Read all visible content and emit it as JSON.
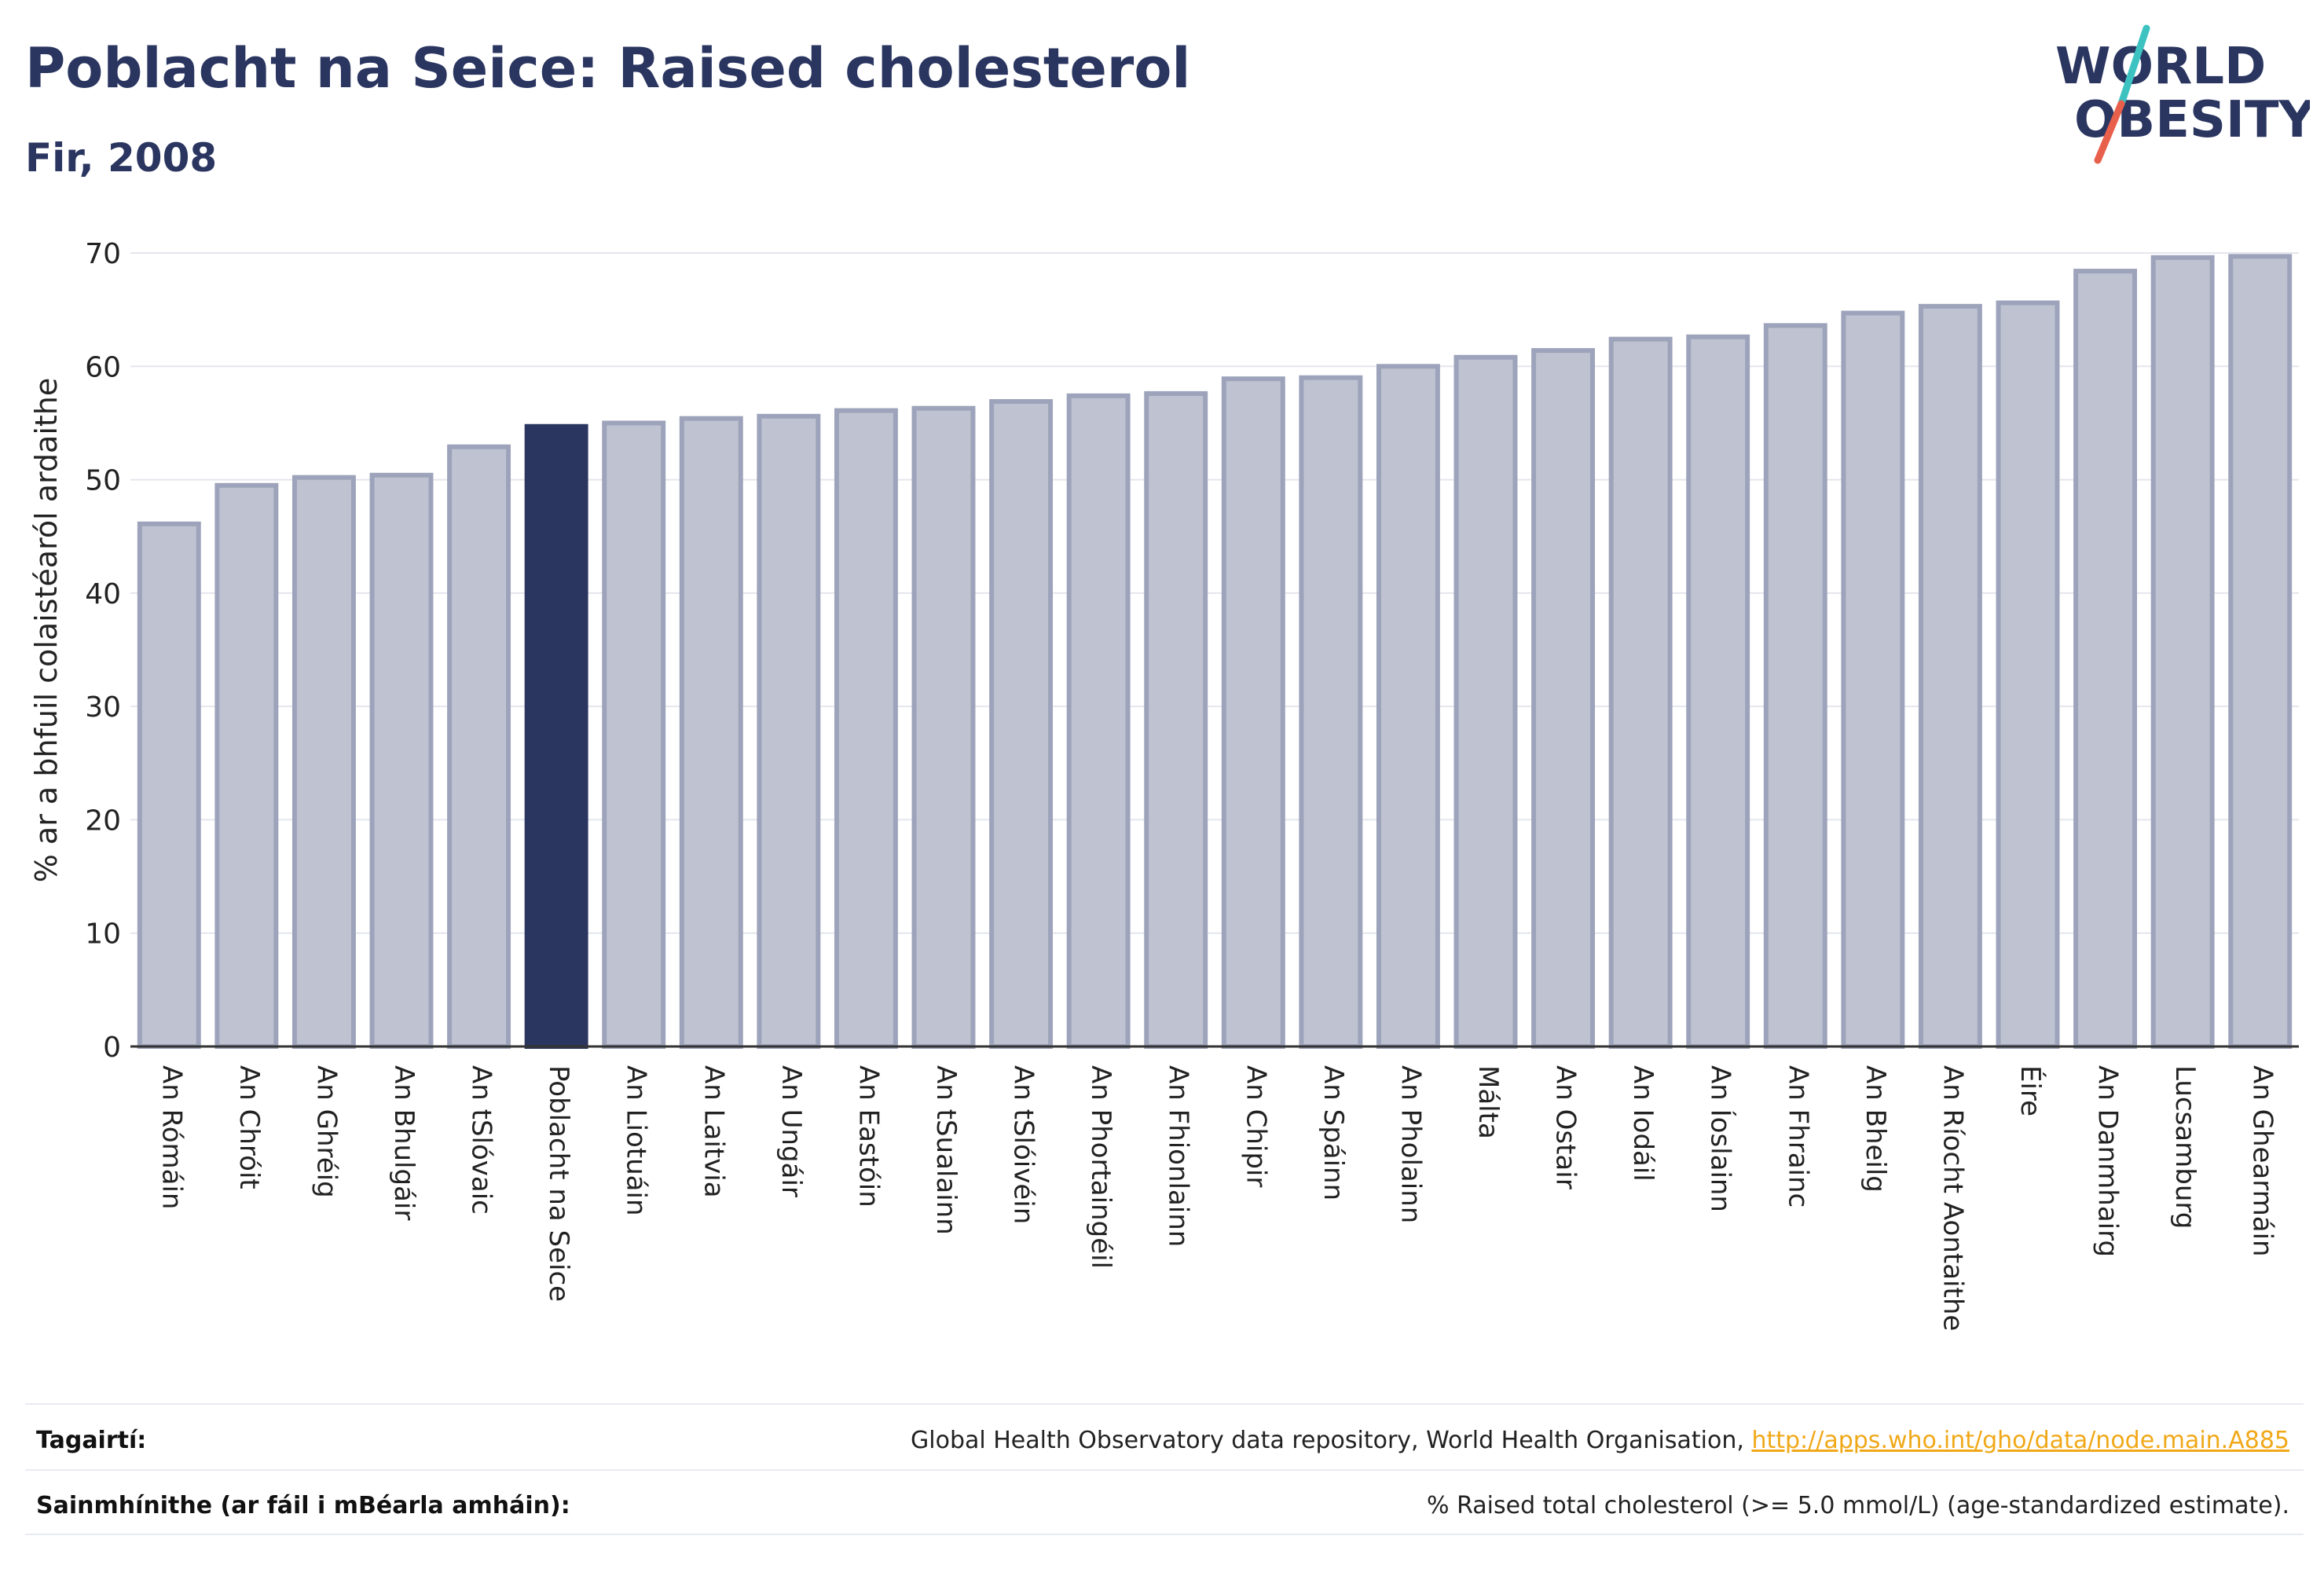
{
  "header": {
    "title": "Poblacht na Seice: Raised cholesterol",
    "subtitle": "Fir, 2008"
  },
  "logo": {
    "line1": "WORLD",
    "line2": "OBESITY",
    "text_color": "#2a3560",
    "slash_colors": [
      "#e8604c",
      "#3cc2c0"
    ]
  },
  "colors": {
    "highlight": "#2a3560",
    "bar_fill": "#bfc3d1",
    "bar_stroke": "#9da3ba",
    "axis": "#333333",
    "grid": "#e4e6ee"
  },
  "chart_data": {
    "type": "bar",
    "title": "Poblacht na Seice: Raised cholesterol",
    "subtitle": "Fir, 2008",
    "xlabel": "",
    "ylabel": "% ar a bhfuil colaistéaról ardaithe",
    "ylim": [
      0,
      70
    ],
    "yticks": [
      0,
      10,
      20,
      30,
      40,
      50,
      60,
      70
    ],
    "grid": true,
    "highlight_category": "Poblacht na Seice",
    "categories": [
      "An Rómáin",
      "An Chróit",
      "An Ghréig",
      "An Bhulgáir",
      "An tSlóvaic",
      "Poblacht na Seice",
      "An Liotuáin",
      "An Laitvia",
      "An Ungáir",
      "An Eastóin",
      "An tSualainn",
      "An tSlóivéin",
      "An Phortaingéil",
      "An Fhionlainn",
      "An Chipir",
      "An Spáinn",
      "An Pholainn",
      "Málta",
      "An Ostair",
      "An Iodáil",
      "An Íoslainn",
      "An Fhrainc",
      "An Bheilg",
      "An Ríocht Aontaithe",
      "Éire",
      "An Danmhairg",
      "Lucsamburg",
      "An Ghearmáin"
    ],
    "values": [
      46.1,
      49.5,
      50.2,
      50.4,
      52.9,
      54.7,
      55.0,
      55.4,
      55.6,
      56.1,
      56.3,
      56.9,
      57.4,
      57.6,
      58.9,
      59.0,
      60.0,
      60.8,
      61.4,
      62.4,
      62.6,
      63.6,
      64.7,
      65.3,
      65.6,
      68.4,
      69.6,
      69.7
    ]
  },
  "footer": {
    "references_label": "Tagairtí:",
    "references_text": "Global Health Observatory data repository, World Health Organisation, ",
    "references_link": "http://apps.who.int/gho/data/node.main.A885",
    "definitions_label": "Sainmhínithe (ar fáil i mBéarla amháin):",
    "definitions_text": "% Raised total cholesterol (>= 5.0 mmol/L) (age-standardized estimate)."
  }
}
